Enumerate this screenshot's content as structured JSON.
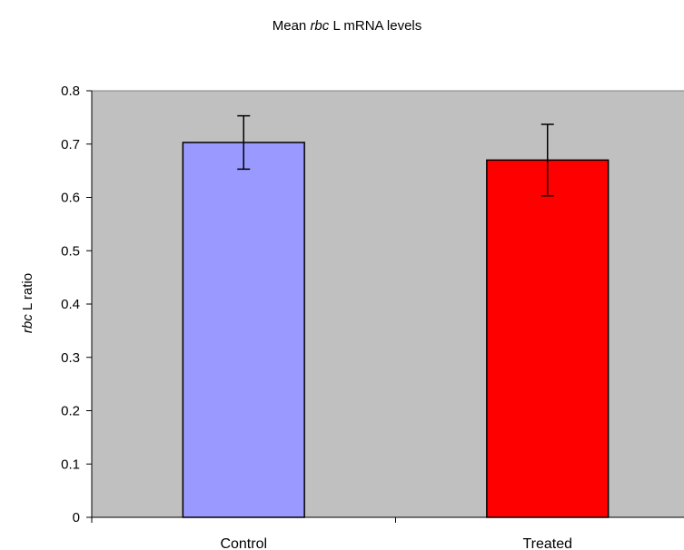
{
  "chart_data": {
    "type": "bar",
    "title": {
      "prefix": "Mean ",
      "italic": "rbc",
      "suffix": " L mRNA levels"
    },
    "ylabel": {
      "italic": "rbc",
      "suffix": " L ratio"
    },
    "xlabel": "",
    "categories": [
      "Control",
      "Treated"
    ],
    "values": [
      0.703,
      0.67
    ],
    "error_low": [
      0.653,
      0.603
    ],
    "error_high": [
      0.753,
      0.737
    ],
    "colors": [
      "#9999ff",
      "#ff0000"
    ],
    "ylim": [
      0,
      0.8
    ],
    "yticks": [
      0,
      0.1,
      0.2,
      0.3,
      0.4,
      0.5,
      0.6,
      0.7,
      0.8
    ],
    "ytick_labels": [
      "0",
      "0.1",
      "0.2",
      "0.3",
      "0.4",
      "0.5",
      "0.6",
      "0.7",
      "0.8"
    ],
    "plot_background": "#c0c0c0",
    "grid": false,
    "legend": "none"
  }
}
